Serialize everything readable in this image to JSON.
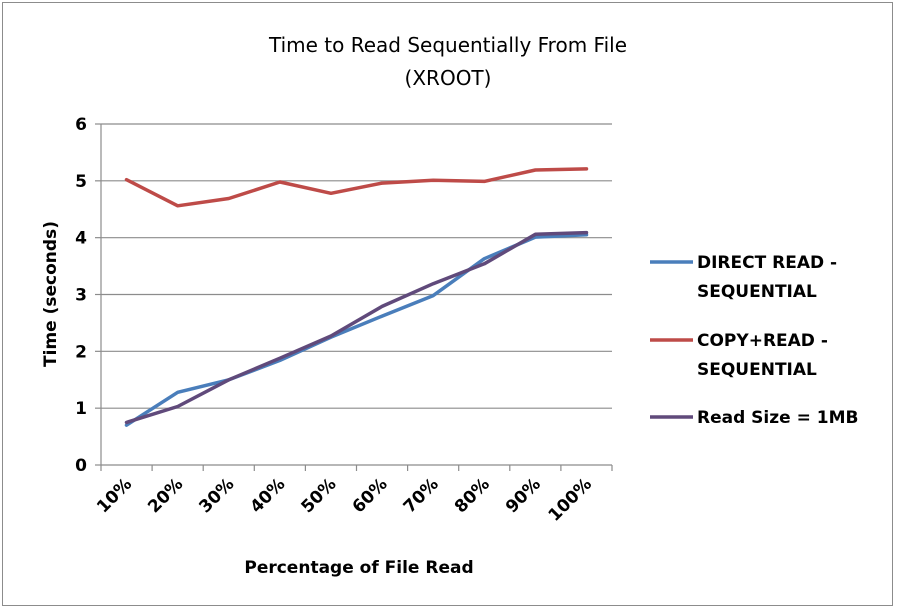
{
  "chart_data": {
    "type": "line",
    "title": [
      "Time to Read Sequentially From File",
      "(XROOT)"
    ],
    "xlabel": "Percentage of File Read",
    "ylabel": "Time (seconds)",
    "categories": [
      "10%",
      "20%",
      "30%",
      "40%",
      "50%",
      "60%",
      "70%",
      "80%",
      "90%",
      "100%"
    ],
    "ylim": [
      0,
      6
    ],
    "yticks": [
      "0",
      "1",
      "2",
      "3",
      "4",
      "5",
      "6"
    ],
    "grid": true,
    "legend_position": "right",
    "series": [
      {
        "name": [
          "DIRECT READ -",
          "SEQUENTIAL"
        ],
        "color": "#4a7ebb",
        "values": [
          0.7,
          1.28,
          1.5,
          1.84,
          2.25,
          2.62,
          2.98,
          3.63,
          4.01,
          4.05
        ]
      },
      {
        "name": [
          "COPY+READ -",
          "SEQUENTIAL"
        ],
        "color": "#be4b48",
        "values": [
          5.02,
          4.56,
          4.69,
          4.98,
          4.78,
          4.96,
          5.01,
          4.99,
          5.19,
          5.21
        ]
      },
      {
        "name": [
          "Read Size = 1MB"
        ],
        "color": "#604a7b",
        "values": [
          0.75,
          1.03,
          1.5,
          1.88,
          2.27,
          2.79,
          3.19,
          3.54,
          4.06,
          4.09
        ]
      }
    ]
  }
}
